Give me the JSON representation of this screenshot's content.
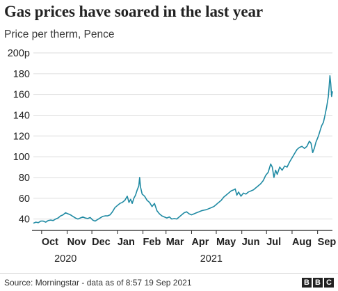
{
  "header": {
    "title": "Gas prices have soared in the last year",
    "subtitle": "Price per therm, Pence"
  },
  "footer": {
    "source": "Source: Morningstar - data as of 8:57 19 Sep 2021",
    "logo": [
      "B",
      "B",
      "C"
    ]
  },
  "colors": {
    "line": "#1f8aa3",
    "grid": "#dddddd",
    "axis": "#222222",
    "text": "#222222"
  },
  "chart_data": {
    "type": "line",
    "title": "Gas prices have soared in the last year",
    "subtitle": "Price per therm, Pence",
    "xlabel": "",
    "ylabel": "",
    "ylim": [
      0,
      200
    ],
    "y_ticks": [
      {
        "value": 40,
        "label": "40"
      },
      {
        "value": 60,
        "label": "60"
      },
      {
        "value": 80,
        "label": "80"
      },
      {
        "value": 100,
        "label": "100"
      },
      {
        "value": 120,
        "label": "120"
      },
      {
        "value": 140,
        "label": "140"
      },
      {
        "value": 160,
        "label": "160"
      },
      {
        "value": 180,
        "label": "180"
      },
      {
        "value": 200,
        "label": "200p"
      }
    ],
    "x_start": "2020-09-21",
    "x_end": "2021-09-19",
    "x_ticks": [
      {
        "date": "2020-10-01",
        "label": "Oct"
      },
      {
        "date": "2020-11-01",
        "label": "Nov"
      },
      {
        "date": "2020-12-01",
        "label": "Dec"
      },
      {
        "date": "2021-01-01",
        "label": "Jan"
      },
      {
        "date": "2021-02-01",
        "label": "Feb"
      },
      {
        "date": "2021-03-01",
        "label": "Mar"
      },
      {
        "date": "2021-04-01",
        "label": "Apr"
      },
      {
        "date": "2021-05-01",
        "label": "May"
      },
      {
        "date": "2021-06-01",
        "label": "Jun"
      },
      {
        "date": "2021-07-01",
        "label": "Jul"
      },
      {
        "date": "2021-08-01",
        "label": "Aug"
      },
      {
        "date": "2021-09-01",
        "label": "Sep"
      }
    ],
    "year_labels": [
      {
        "date": "2020-10-30",
        "label": "2020"
      },
      {
        "date": "2021-04-25",
        "label": "2021"
      }
    ],
    "grid": true,
    "series": [
      {
        "points": [
          [
            "2020-09-21",
            36
          ],
          [
            "2020-09-24",
            37
          ],
          [
            "2020-09-27",
            36.5
          ],
          [
            "2020-09-30",
            38
          ],
          [
            "2020-10-03",
            38
          ],
          [
            "2020-10-06",
            37
          ],
          [
            "2020-10-09",
            38.5
          ],
          [
            "2020-10-12",
            39
          ],
          [
            "2020-10-15",
            38.5
          ],
          [
            "2020-10-18",
            40
          ],
          [
            "2020-10-21",
            41
          ],
          [
            "2020-10-24",
            43
          ],
          [
            "2020-10-27",
            44
          ],
          [
            "2020-10-30",
            46
          ],
          [
            "2020-11-02",
            45
          ],
          [
            "2020-11-05",
            44
          ],
          [
            "2020-11-08",
            42.5
          ],
          [
            "2020-11-11",
            41
          ],
          [
            "2020-11-14",
            40
          ],
          [
            "2020-11-17",
            41
          ],
          [
            "2020-11-20",
            42
          ],
          [
            "2020-11-23",
            41
          ],
          [
            "2020-11-26",
            40.5
          ],
          [
            "2020-11-29",
            41.5
          ],
          [
            "2020-12-02",
            39
          ],
          [
            "2020-12-05",
            38
          ],
          [
            "2020-12-08",
            39.5
          ],
          [
            "2020-12-11",
            41
          ],
          [
            "2020-12-14",
            42.5
          ],
          [
            "2020-12-17",
            43
          ],
          [
            "2020-12-20",
            43
          ],
          [
            "2020-12-23",
            44
          ],
          [
            "2020-12-26",
            47
          ],
          [
            "2020-12-29",
            51
          ],
          [
            "2021-01-01",
            53
          ],
          [
            "2021-01-04",
            55
          ],
          [
            "2021-01-07",
            56
          ],
          [
            "2021-01-10",
            58
          ],
          [
            "2021-01-13",
            62
          ],
          [
            "2021-01-15",
            56
          ],
          [
            "2021-01-17",
            59
          ],
          [
            "2021-01-19",
            55
          ],
          [
            "2021-01-21",
            60
          ],
          [
            "2021-01-23",
            63
          ],
          [
            "2021-01-25",
            68
          ],
          [
            "2021-01-27",
            72
          ],
          [
            "2021-01-28",
            80
          ],
          [
            "2021-01-29",
            71
          ],
          [
            "2021-01-31",
            64
          ],
          [
            "2021-02-03",
            62
          ],
          [
            "2021-02-06",
            58
          ],
          [
            "2021-02-09",
            56
          ],
          [
            "2021-02-12",
            52
          ],
          [
            "2021-02-15",
            55
          ],
          [
            "2021-02-18",
            48
          ],
          [
            "2021-02-21",
            45
          ],
          [
            "2021-02-24",
            43
          ],
          [
            "2021-02-27",
            42
          ],
          [
            "2021-03-02",
            41
          ],
          [
            "2021-03-05",
            42
          ],
          [
            "2021-03-08",
            40
          ],
          [
            "2021-03-11",
            40.5
          ],
          [
            "2021-03-14",
            40
          ],
          [
            "2021-03-17",
            42
          ],
          [
            "2021-03-20",
            44
          ],
          [
            "2021-03-23",
            46
          ],
          [
            "2021-03-26",
            47
          ],
          [
            "2021-03-29",
            45
          ],
          [
            "2021-04-01",
            44
          ],
          [
            "2021-04-04",
            45
          ],
          [
            "2021-04-07",
            46
          ],
          [
            "2021-04-10",
            47
          ],
          [
            "2021-04-13",
            48
          ],
          [
            "2021-04-16",
            48.5
          ],
          [
            "2021-04-19",
            49
          ],
          [
            "2021-04-22",
            50
          ],
          [
            "2021-04-25",
            51
          ],
          [
            "2021-04-28",
            52
          ],
          [
            "2021-05-01",
            54
          ],
          [
            "2021-05-04",
            56
          ],
          [
            "2021-05-07",
            58
          ],
          [
            "2021-05-10",
            61
          ],
          [
            "2021-05-13",
            63
          ],
          [
            "2021-05-16",
            65
          ],
          [
            "2021-05-19",
            67
          ],
          [
            "2021-05-22",
            68
          ],
          [
            "2021-05-24",
            69
          ],
          [
            "2021-05-26",
            63
          ],
          [
            "2021-05-28",
            66
          ],
          [
            "2021-05-31",
            62
          ],
          [
            "2021-06-03",
            65
          ],
          [
            "2021-06-06",
            64
          ],
          [
            "2021-06-09",
            66
          ],
          [
            "2021-06-12",
            67
          ],
          [
            "2021-06-15",
            68
          ],
          [
            "2021-06-18",
            70
          ],
          [
            "2021-06-21",
            72
          ],
          [
            "2021-06-24",
            74
          ],
          [
            "2021-06-27",
            77
          ],
          [
            "2021-06-30",
            82
          ],
          [
            "2021-07-03",
            85
          ],
          [
            "2021-07-06",
            93
          ],
          [
            "2021-07-08",
            90
          ],
          [
            "2021-07-10",
            80
          ],
          [
            "2021-07-12",
            87
          ],
          [
            "2021-07-14",
            83
          ],
          [
            "2021-07-17",
            90
          ],
          [
            "2021-07-20",
            87
          ],
          [
            "2021-07-23",
            91
          ],
          [
            "2021-07-26",
            90
          ],
          [
            "2021-07-29",
            95
          ],
          [
            "2021-08-01",
            99
          ],
          [
            "2021-08-04",
            103
          ],
          [
            "2021-08-07",
            107
          ],
          [
            "2021-08-10",
            109
          ],
          [
            "2021-08-13",
            110
          ],
          [
            "2021-08-16",
            108
          ],
          [
            "2021-08-19",
            110
          ],
          [
            "2021-08-22",
            115
          ],
          [
            "2021-08-24",
            113
          ],
          [
            "2021-08-26",
            104
          ],
          [
            "2021-08-28",
            108
          ],
          [
            "2021-08-30",
            114
          ],
          [
            "2021-09-02",
            120
          ],
          [
            "2021-09-04",
            125
          ],
          [
            "2021-09-06",
            130
          ],
          [
            "2021-09-08",
            133
          ],
          [
            "2021-09-10",
            140
          ],
          [
            "2021-09-12",
            148
          ],
          [
            "2021-09-14",
            158
          ],
          [
            "2021-09-15",
            168
          ],
          [
            "2021-09-16",
            178
          ],
          [
            "2021-09-17",
            170
          ],
          [
            "2021-09-18",
            158
          ],
          [
            "2021-09-19",
            163
          ]
        ]
      }
    ]
  }
}
